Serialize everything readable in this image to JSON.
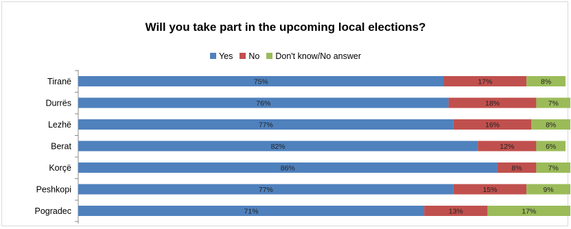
{
  "chart_data": {
    "type": "bar",
    "orientation": "horizontal",
    "stacked": true,
    "title": "Will you take part in the upcoming local elections?",
    "legend_position": "top",
    "grid": false,
    "categories": [
      "Tiranë",
      "Durrës",
      "Lezhë",
      "Berat",
      "Korçë",
      "Peshkopi",
      "Pogradec"
    ],
    "series": [
      {
        "name": "Yes",
        "color": "#4f81bd",
        "values": [
          75,
          76,
          77,
          82,
          86,
          77,
          71
        ]
      },
      {
        "name": "No",
        "color": "#c0504d",
        "values": [
          17,
          18,
          16,
          12,
          8,
          15,
          13
        ]
      },
      {
        "name": "Don't know/No answer",
        "color": "#9bbb59",
        "values": [
          8,
          7,
          8,
          6,
          7,
          9,
          17
        ]
      }
    ],
    "value_suffix": "%",
    "xlim": [
      0,
      100
    ]
  }
}
